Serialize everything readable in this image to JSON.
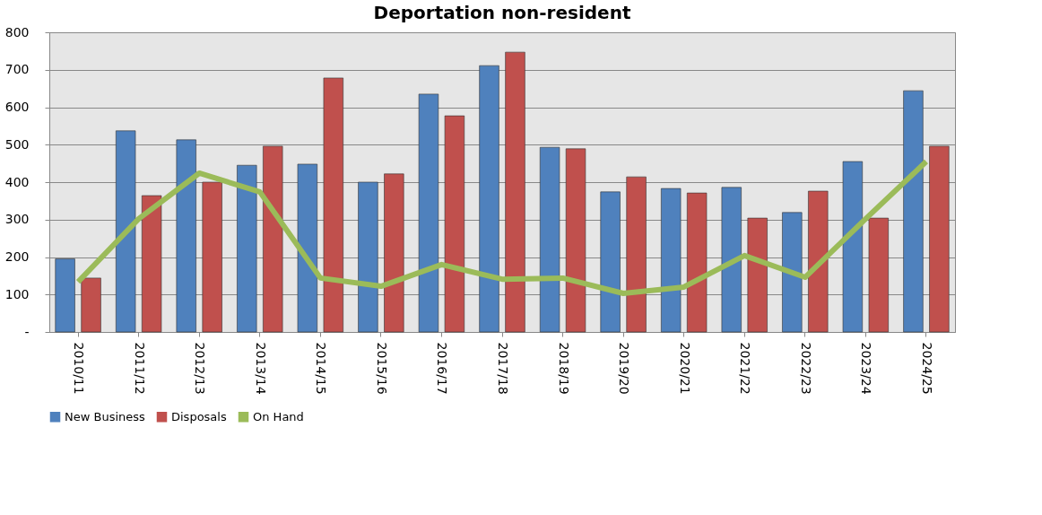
{
  "chart_data": {
    "type": "bar",
    "title": "Deportation non-resident",
    "categories": [
      "2010/11",
      "2011/12",
      "2012/13",
      "2013/14",
      "2014/15",
      "2015/16",
      "2016/17",
      "2017/18",
      "2018/19",
      "2019/20",
      "2020/21",
      "2021/22",
      "2022/23",
      "2023/24",
      "2024/25"
    ],
    "series": [
      {
        "name": "New Business",
        "color": "#4f81bd",
        "values": [
          195,
          537,
          513,
          445,
          448,
          400,
          635,
          711,
          493,
          374,
          383,
          386,
          319,
          455,
          644
        ]
      },
      {
        "name": "Disposals",
        "color": "#c0504d",
        "values": [
          144,
          364,
          400,
          496,
          678,
          422,
          577,
          747,
          489,
          414,
          371,
          304,
          376,
          304,
          496
        ]
      },
      {
        "name": "On Hand",
        "type": "line",
        "color": "#9bbb59",
        "values": [
          134,
          302,
          424,
          374,
          144,
          122,
          180,
          141,
          144,
          103,
          120,
          204,
          146,
          302,
          455
        ]
      }
    ],
    "ylim": [
      0,
      800
    ],
    "yticks": [
      {
        "value": 0,
        "label": "-"
      },
      100,
      200,
      300,
      400,
      500,
      600,
      700,
      800
    ],
    "grid": "y",
    "legend": "bottom"
  }
}
